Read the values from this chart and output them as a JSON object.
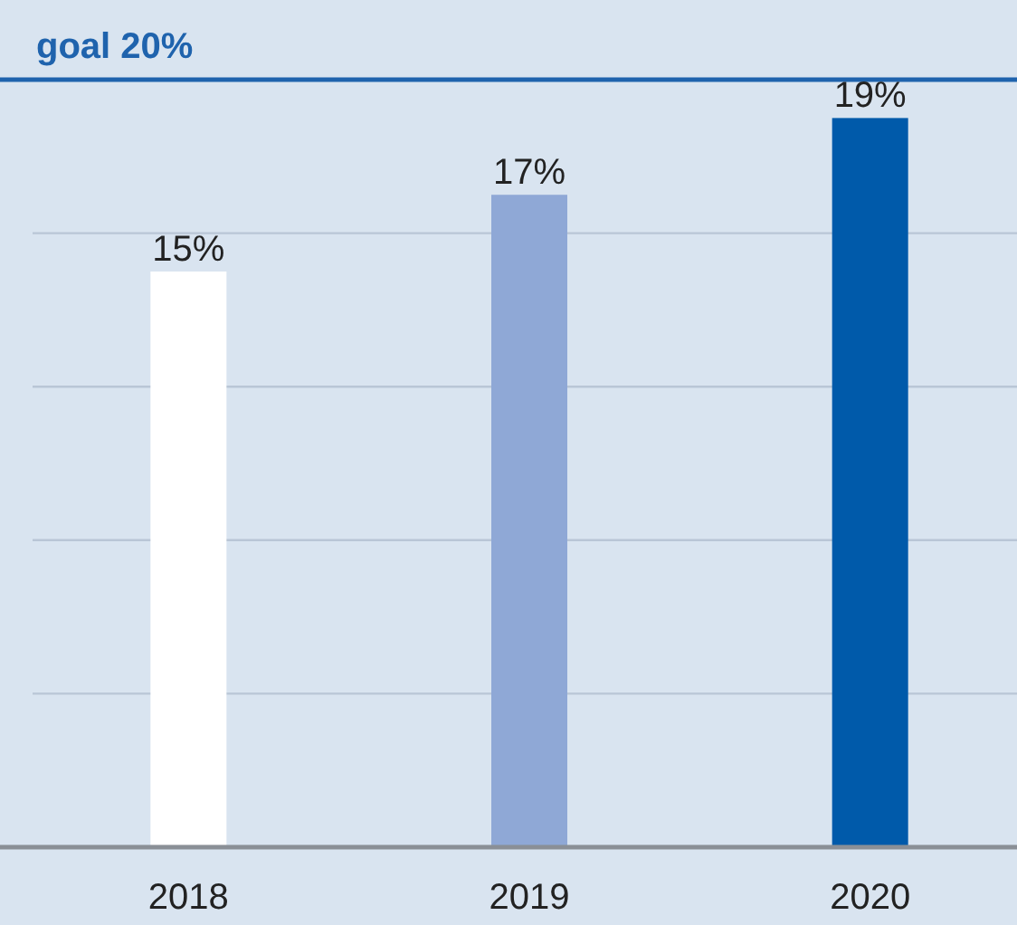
{
  "chart_data": {
    "type": "bar",
    "categories": [
      "2018",
      "2019",
      "2020"
    ],
    "values": [
      15,
      17,
      19
    ],
    "colors": [
      "#ffffff",
      "#8fa8d6",
      "#005aaa"
    ],
    "value_labels": [
      "15%",
      "17%",
      "19%"
    ],
    "ylim": [
      0,
      20
    ],
    "yticks": [
      {
        "value": 0,
        "label": null
      },
      {
        "value": 4,
        "label": null
      },
      {
        "value": 8,
        "label": null
      },
      {
        "value": 12,
        "label": null
      },
      {
        "value": 16,
        "label": null
      }
    ],
    "grid": "y",
    "ref_lines": [
      {
        "axis": "y",
        "value": 20,
        "label": "goal 20%",
        "color": "#1f63ad"
      }
    ]
  }
}
